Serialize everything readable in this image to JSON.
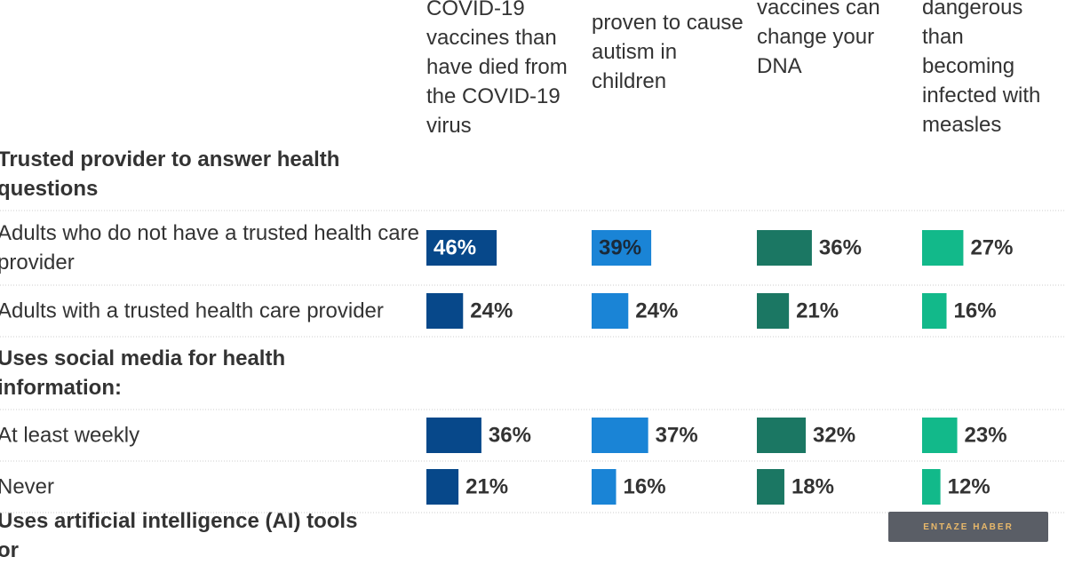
{
  "chart_data": {
    "type": "bar",
    "categories": [
      "Trusted provider to answer health questions",
      "Adults who do not have a trusted health care provider",
      "Adults with a trusted health care provider",
      "Uses social media for health information:",
      "At least weekly",
      "Never",
      "Uses artificial intelligence (AI) tools or"
    ],
    "series": [
      {
        "name": "COVID-19 vaccines than have died from the COVID-19 virus",
        "color": "#07488a",
        "values": [
          null,
          46,
          24,
          null,
          36,
          21,
          null
        ],
        "value_labels": [
          null,
          "46%",
          "24%",
          null,
          "36%",
          "21%",
          null
        ]
      },
      {
        "name": "have been proven to cause autism in children",
        "color": "#1a84d6",
        "values": [
          null,
          39,
          24,
          null,
          37,
          16,
          null
        ],
        "value_labels": [
          null,
          "39%",
          "24%",
          null,
          "37%",
          "16%",
          null
        ]
      },
      {
        "name": "vaccines can change your DNA",
        "color": "#1b7763",
        "values": [
          null,
          36,
          21,
          null,
          32,
          18,
          null
        ],
        "value_labels": [
          null,
          "36%",
          "21%",
          null,
          "32%",
          "18%",
          null
        ]
      },
      {
        "name": "dangerous than becoming infected with measles",
        "color": "#12b98a",
        "values": [
          null,
          27,
          16,
          null,
          23,
          12,
          null
        ],
        "value_labels": [
          null,
          "27%",
          "16%",
          null,
          "23%",
          "12%",
          null
        ]
      }
    ]
  },
  "watermark": "ENTAZE HABER"
}
